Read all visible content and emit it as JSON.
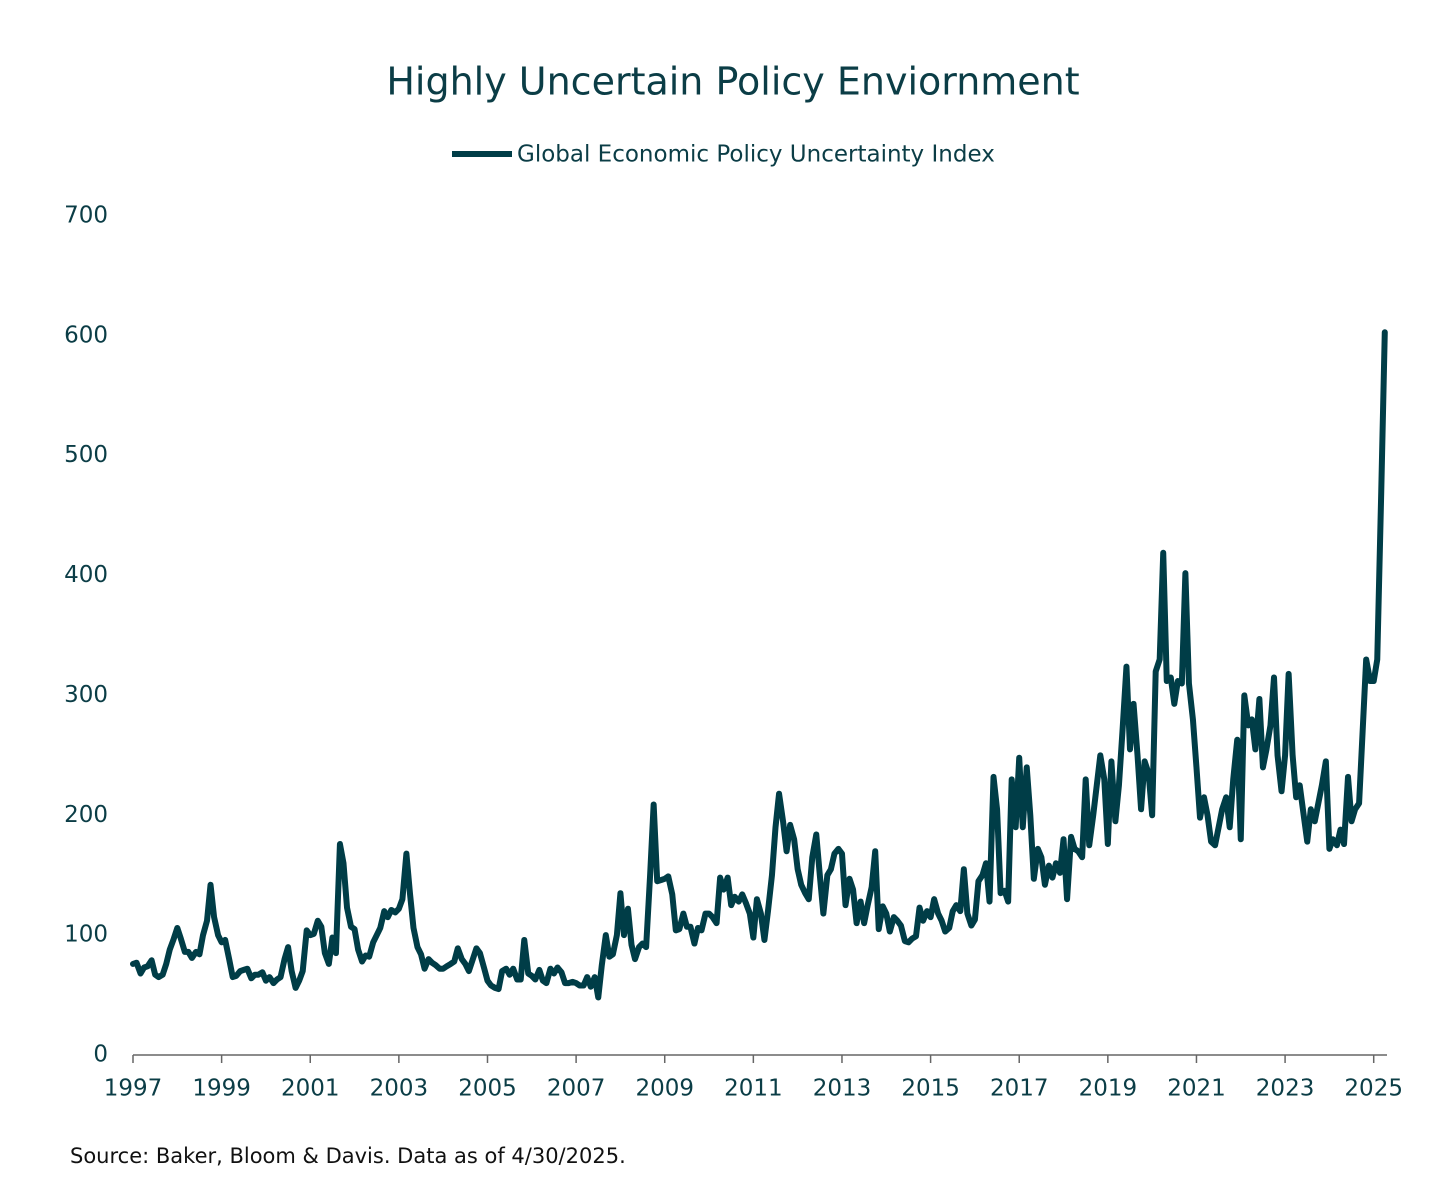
{
  "chart_data": {
    "type": "line",
    "title": "Highly Uncertain Policy Enviornment",
    "source": "Source: Baker, Bloom & Davis. Data as of 4/30/2025.",
    "x": [
      1997,
      1997.08,
      1997.17,
      1997.25,
      1997.33,
      1997.42,
      1997.5,
      1997.58,
      1997.67,
      1997.75,
      1997.83,
      1997.92,
      1998,
      1998.08,
      1998.17,
      1998.25,
      1998.33,
      1998.42,
      1998.5,
      1998.58,
      1998.67,
      1998.75,
      1998.83,
      1998.92,
      1999,
      1999.08,
      1999.17,
      1999.25,
      1999.33,
      1999.42,
      1999.5,
      1999.58,
      1999.67,
      1999.75,
      1999.83,
      1999.92,
      2000,
      2000.08,
      2000.17,
      2000.25,
      2000.33,
      2000.42,
      2000.5,
      2000.58,
      2000.67,
      2000.75,
      2000.83,
      2000.92,
      2001,
      2001.08,
      2001.17,
      2001.25,
      2001.33,
      2001.42,
      2001.5,
      2001.58,
      2001.67,
      2001.75,
      2001.83,
      2001.92,
      2002,
      2002.08,
      2002.17,
      2002.25,
      2002.33,
      2002.42,
      2002.5,
      2002.58,
      2002.67,
      2002.75,
      2002.83,
      2002.92,
      2003,
      2003.08,
      2003.17,
      2003.25,
      2003.33,
      2003.42,
      2003.5,
      2003.58,
      2003.67,
      2003.75,
      2003.83,
      2003.92,
      2004,
      2004.08,
      2004.17,
      2004.25,
      2004.33,
      2004.42,
      2004.5,
      2004.58,
      2004.67,
      2004.75,
      2004.83,
      2004.92,
      2005,
      2005.08,
      2005.17,
      2005.25,
      2005.33,
      2005.42,
      2005.5,
      2005.58,
      2005.67,
      2005.75,
      2005.83,
      2005.92,
      2006,
      2006.08,
      2006.17,
      2006.25,
      2006.33,
      2006.42,
      2006.5,
      2006.58,
      2006.67,
      2006.75,
      2006.83,
      2006.92,
      2007,
      2007.08,
      2007.17,
      2007.25,
      2007.33,
      2007.42,
      2007.5,
      2007.58,
      2007.67,
      2007.75,
      2007.83,
      2007.92,
      2008,
      2008.08,
      2008.17,
      2008.25,
      2008.33,
      2008.42,
      2008.5,
      2008.58,
      2008.67,
      2008.75,
      2008.83,
      2008.92,
      2009,
      2009.08,
      2009.17,
      2009.25,
      2009.33,
      2009.42,
      2009.5,
      2009.58,
      2009.67,
      2009.75,
      2009.83,
      2009.92,
      2010,
      2010.08,
      2010.17,
      2010.25,
      2010.33,
      2010.42,
      2010.5,
      2010.58,
      2010.67,
      2010.75,
      2010.83,
      2010.92,
      2011,
      2011.08,
      2011.17,
      2011.25,
      2011.33,
      2011.42,
      2011.5,
      2011.58,
      2011.67,
      2011.75,
      2011.83,
      2011.92,
      2012,
      2012.08,
      2012.17,
      2012.25,
      2012.33,
      2012.42,
      2012.5,
      2012.58,
      2012.67,
      2012.75,
      2012.83,
      2012.92,
      2013,
      2013.08,
      2013.17,
      2013.25,
      2013.33,
      2013.42,
      2013.5,
      2013.58,
      2013.67,
      2013.75,
      2013.83,
      2013.92,
      2014,
      2014.08,
      2014.17,
      2014.25,
      2014.33,
      2014.42,
      2014.5,
      2014.58,
      2014.67,
      2014.75,
      2014.83,
      2014.92,
      2015,
      2015.08,
      2015.17,
      2015.25,
      2015.33,
      2015.42,
      2015.5,
      2015.58,
      2015.67,
      2015.75,
      2015.83,
      2015.92,
      2016,
      2016.08,
      2016.17,
      2016.25,
      2016.33,
      2016.42,
      2016.5,
      2016.58,
      2016.67,
      2016.75,
      2016.83,
      2016.92,
      2017,
      2017.08,
      2017.17,
      2017.25,
      2017.33,
      2017.42,
      2017.5,
      2017.58,
      2017.67,
      2017.75,
      2017.83,
      2017.92,
      2018,
      2018.08,
      2018.17,
      2018.25,
      2018.33,
      2018.42,
      2018.5,
      2018.58,
      2018.67,
      2018.75,
      2018.83,
      2018.92,
      2019,
      2019.08,
      2019.17,
      2019.25,
      2019.33,
      2019.42,
      2019.5,
      2019.58,
      2019.67,
      2019.75,
      2019.83,
      2019.92,
      2020,
      2020.08,
      2020.17,
      2020.25,
      2020.33,
      2020.42,
      2020.5,
      2020.58,
      2020.67,
      2020.75,
      2020.83,
      2020.92,
      2021,
      2021.08,
      2021.17,
      2021.25,
      2021.33,
      2021.42,
      2021.5,
      2021.58,
      2021.67,
      2021.75,
      2021.83,
      2021.92,
      2022,
      2022.08,
      2022.17,
      2022.25,
      2022.33,
      2022.42,
      2022.5,
      2022.58,
      2022.67,
      2022.75,
      2022.83,
      2022.92,
      2023,
      2023.08,
      2023.17,
      2023.25,
      2023.33,
      2023.42,
      2023.5,
      2023.58,
      2023.67,
      2023.75,
      2023.83,
      2023.92,
      2024,
      2024.08,
      2024.17,
      2024.25,
      2024.33,
      2024.42,
      2024.5,
      2024.58,
      2024.67,
      2024.75,
      2024.83,
      2024.92,
      2025,
      2025.08,
      2025.17,
      2025.25
    ],
    "series": [
      {
        "name": "Global Economic Policy Uncertainty Index",
        "color": "#003d47",
        "values": [
          76,
          77,
          68,
          73,
          74,
          79,
          67,
          65,
          67,
          76,
          88,
          97,
          106,
          97,
          86,
          86,
          81,
          86,
          84,
          100,
          112,
          142,
          115,
          100,
          94,
          96,
          80,
          65,
          66,
          70,
          71,
          72,
          64,
          67,
          67,
          69,
          62,
          65,
          60,
          63,
          65,
          80,
          90,
          70,
          56,
          62,
          70,
          104,
          100,
          101,
          112,
          107,
          85,
          76,
          98,
          85,
          176,
          160,
          123,
          107,
          105,
          88,
          78,
          83,
          82,
          94,
          100,
          106,
          120,
          115,
          121,
          119,
          122,
          130,
          168,
          135,
          106,
          90,
          84,
          72,
          80,
          77,
          75,
          72,
          72,
          74,
          76,
          78,
          89,
          80,
          76,
          70,
          80,
          89,
          85,
          73,
          62,
          58,
          56,
          55,
          70,
          72,
          67,
          72,
          63,
          63,
          96,
          68,
          66,
          63,
          71,
          62,
          60,
          72,
          68,
          73,
          69,
          60,
          60,
          61,
          60,
          58,
          58,
          65,
          57,
          65,
          48,
          75,
          100,
          82,
          84,
          100,
          135,
          100,
          122,
          92,
          80,
          90,
          93,
          90,
          150,
          209,
          145,
          146,
          147,
          149,
          134,
          104,
          105,
          118,
          107,
          107,
          93,
          106,
          104,
          118,
          118,
          115,
          110,
          148,
          138,
          148,
          125,
          132,
          128,
          134,
          127,
          118,
          98,
          130,
          118,
          96,
          120,
          150,
          190,
          218,
          195,
          170,
          192,
          180,
          155,
          142,
          135,
          130,
          165,
          184,
          150,
          118,
          150,
          155,
          168,
          172,
          168,
          125,
          147,
          138,
          110,
          128,
          110,
          125,
          140,
          170,
          105,
          124,
          118,
          103,
          115,
          112,
          108,
          95,
          94,
          97,
          99,
          123,
          112,
          120,
          115,
          130,
          118,
          112,
          103,
          106,
          120,
          125,
          120,
          155,
          118,
          108,
          113,
          145,
          150,
          160,
          128,
          232,
          205,
          135,
          137,
          128,
          230,
          190,
          248,
          190,
          240,
          200,
          147,
          172,
          165,
          142,
          158,
          148,
          160,
          152,
          180,
          130,
          182,
          172,
          170,
          165,
          230,
          175,
          200,
          225,
          250,
          230,
          176,
          245,
          195,
          225,
          270,
          324,
          255,
          293,
          250,
          205,
          245,
          235,
          200,
          320,
          330,
          419,
          312,
          315,
          293,
          312,
          310,
          402,
          310,
          280,
          240,
          198,
          215,
          200,
          178,
          175,
          190,
          205,
          215,
          190,
          230,
          263,
          180,
          300,
          275,
          280,
          255,
          297,
          240,
          255,
          275,
          315,
          250,
          220,
          250,
          318,
          250,
          215,
          225,
          200,
          178,
          205,
          195,
          210,
          225,
          245,
          172,
          180,
          175,
          188,
          176,
          232,
          195,
          205,
          210,
          270,
          330,
          312,
          312,
          330,
          470,
          603
        ]
      }
    ],
    "xlim": [
      1997,
      2025.3
    ],
    "xticks": [
      1997,
      1999,
      2001,
      2003,
      2005,
      2007,
      2009,
      2011,
      2013,
      2015,
      2017,
      2019,
      2021,
      2023,
      2025
    ],
    "ylim": [
      0,
      700
    ],
    "yticks": [
      0,
      100,
      200,
      300,
      400,
      500,
      600,
      700
    ],
    "grid": false,
    "legend": "top"
  }
}
